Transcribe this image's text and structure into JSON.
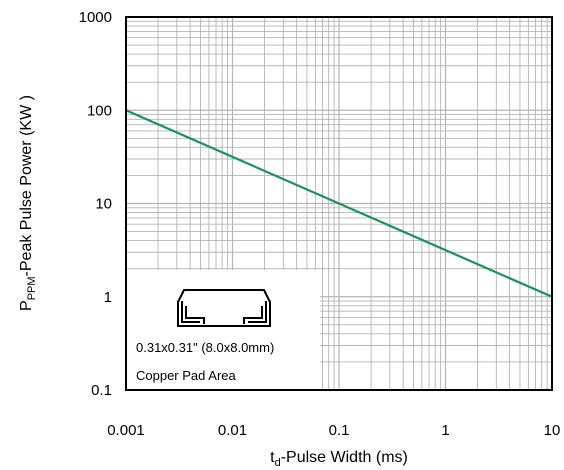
{
  "chart_data": {
    "type": "line",
    "x_scale": "log",
    "y_scale": "log",
    "xlim": [
      0.001,
      10
    ],
    "ylim": [
      0.1,
      1000
    ],
    "grid": true,
    "x_ticks": [
      "0.001",
      "0.01",
      "0.1",
      "1",
      "10"
    ],
    "y_ticks": [
      "0.1",
      "1",
      "10",
      "100",
      "1000"
    ],
    "xlabel": {
      "prefix": "t",
      "sub": "d",
      "rest": "-Pulse Width (ms)"
    },
    "ylabel": {
      "prefix": "P",
      "sub": "PPM",
      "rest": "-Peak Pulse Power (KW )"
    },
    "series": [
      {
        "color": "#1a9160",
        "x": [
          0.001,
          10
        ],
        "y": [
          100,
          1
        ]
      }
    ],
    "inset": {
      "lines": [
        "0.31x0.31\" (8.0x8.0mm)",
        "Copper Pad Area"
      ]
    },
    "colors": {
      "grid": "#b4b4b4",
      "frame": "#000000"
    }
  }
}
